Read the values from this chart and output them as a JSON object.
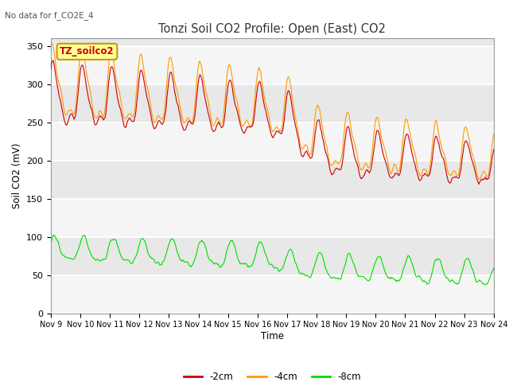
{
  "title": "Tonzi Soil CO2 Profile: Open (East) CO2",
  "subtitle": "No data for f_CO2E_4",
  "ylabel": "Soil CO2 (mV)",
  "xlabel": "Time",
  "legend_label": "TZ_soilco2",
  "ylim": [
    0,
    360
  ],
  "yticks": [
    0,
    50,
    100,
    150,
    200,
    250,
    300,
    350
  ],
  "bg_color": "#e8e8e8",
  "line_colors": {
    "2cm": "#cc0000",
    "4cm": "#ff9900",
    "8cm": "#00dd00"
  },
  "legend_items": [
    {
      "label": "-2cm",
      "color": "#cc0000"
    },
    {
      "label": "-4cm",
      "color": "#ff9900"
    },
    {
      "label": "-8cm",
      "color": "#00dd00"
    }
  ],
  "x_tick_labels": [
    "Nov 9",
    "Nov 10",
    "Nov 11",
    "Nov 12",
    "Nov 13",
    "Nov 14",
    "Nov 15",
    "Nov 16",
    "Nov 17",
    "Nov 18",
    "Nov 19",
    "Nov 20",
    "Nov 21",
    "Nov 22",
    "Nov 23",
    "Nov 24"
  ],
  "n_days": 15,
  "figsize": [
    6.4,
    4.8
  ],
  "dpi": 100
}
